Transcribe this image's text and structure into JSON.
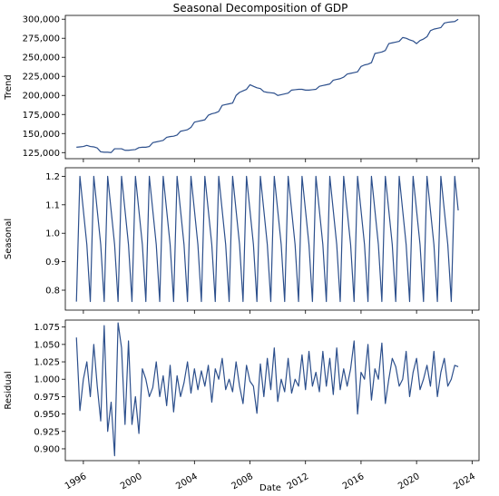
{
  "title": "Seasonal Decomposition of GDP",
  "xlabel": "Date",
  "colors": {
    "line": "#2c4f8c",
    "frame": "#000000",
    "background": "#ffffff"
  },
  "x_ticks": [
    "1996",
    "2000",
    "2004",
    "2008",
    "2012",
    "2016",
    "2020",
    "2024"
  ],
  "chart_data": [
    {
      "type": "line",
      "ylabel": "Trend",
      "xlim": [
        1994.7,
        2024.5
      ],
      "ylim": [
        117000,
        305000
      ],
      "yticks": [
        125000,
        150000,
        175000,
        200000,
        225000,
        250000,
        275000,
        300000
      ],
      "ytick_labels": [
        "125,000",
        "150,000",
        "175,000",
        "200,000",
        "225,000",
        "250,000",
        "275,000",
        "300,000"
      ],
      "x": [
        1995.5,
        1995.75,
        1996.0,
        1996.25,
        1996.5,
        1996.75,
        1997.0,
        1997.25,
        1997.5,
        1997.75,
        1998.0,
        1998.25,
        1998.5,
        1998.75,
        1999.0,
        1999.25,
        1999.5,
        1999.75,
        2000.0,
        2000.25,
        2000.5,
        2000.75,
        2001.0,
        2001.25,
        2001.5,
        2001.75,
        2002.0,
        2002.25,
        2002.5,
        2002.75,
        2003.0,
        2003.25,
        2003.5,
        2003.75,
        2004.0,
        2004.25,
        2004.5,
        2004.75,
        2005.0,
        2005.25,
        2005.5,
        2005.75,
        2006.0,
        2006.25,
        2006.5,
        2006.75,
        2007.0,
        2007.25,
        2007.5,
        2007.75,
        2008.0,
        2008.25,
        2008.5,
        2008.75,
        2009.0,
        2009.25,
        2009.5,
        2009.75,
        2010.0,
        2010.25,
        2010.5,
        2010.75,
        2011.0,
        2011.25,
        2011.5,
        2011.75,
        2012.0,
        2012.25,
        2012.5,
        2012.75,
        2013.0,
        2013.25,
        2013.5,
        2013.75,
        2014.0,
        2014.25,
        2014.5,
        2014.75,
        2015.0,
        2015.25,
        2015.5,
        2015.75,
        2016.0,
        2016.25,
        2016.5,
        2016.75,
        2017.0,
        2017.25,
        2017.5,
        2017.75,
        2018.0,
        2018.25,
        2018.5,
        2018.75,
        2019.0,
        2019.25,
        2019.5,
        2019.75,
        2020.0,
        2020.25,
        2020.5,
        2020.75,
        2021.0,
        2021.25,
        2021.5,
        2021.75,
        2022.0,
        2022.25,
        2022.5,
        2022.75,
        2023.0
      ],
      "y": [
        132000,
        132500,
        133000,
        134500,
        133000,
        132500,
        131000,
        126000,
        125500,
        125500,
        125000,
        130000,
        130000,
        130000,
        128000,
        128000,
        128500,
        129000,
        131500,
        132000,
        132000,
        133000,
        138000,
        139000,
        140000,
        141000,
        145000,
        146000,
        146500,
        148000,
        153000,
        154000,
        155000,
        158000,
        165000,
        166000,
        167000,
        168000,
        174000,
        176000,
        177000,
        179000,
        187000,
        188000,
        189000,
        190000,
        200000,
        204000,
        206000,
        208000,
        214000,
        212000,
        210000,
        209000,
        205000,
        204000,
        203500,
        203000,
        200000,
        201000,
        202000,
        203000,
        207000,
        207500,
        208000,
        208000,
        207000,
        207000,
        207500,
        208000,
        212000,
        213000,
        214000,
        215000,
        220000,
        221000,
        222000,
        224000,
        228000,
        229000,
        230000,
        231000,
        238000,
        240000,
        241000,
        243000,
        255000,
        256000,
        257000,
        259000,
        268000,
        269000,
        270000,
        271000,
        276000,
        275000,
        273000,
        271500,
        268000,
        272000,
        274000,
        277000,
        285000,
        287000,
        288000,
        289000,
        295000,
        296000,
        296500,
        297000,
        300000
      ]
    },
    {
      "type": "line",
      "ylabel": "Seasonal",
      "xlim": [
        1994.7,
        2024.5
      ],
      "ylim": [
        0.73,
        1.23
      ],
      "yticks": [
        0.8,
        0.9,
        1.0,
        1.1,
        1.2
      ],
      "ytick_labels": [
        "0.8",
        "0.9",
        "1.0",
        "1.1",
        "1.2"
      ],
      "x": [
        1995.5,
        1995.75,
        1996.0,
        1996.25,
        1996.5,
        1996.75,
        1997.0,
        1997.25,
        1997.5,
        1997.75,
        1998.0,
        1998.25,
        1998.5,
        1998.75,
        1999.0,
        1999.25,
        1999.5,
        1999.75,
        2000.0,
        2000.25,
        2000.5,
        2000.75,
        2001.0,
        2001.25,
        2001.5,
        2001.75,
        2002.0,
        2002.25,
        2002.5,
        2002.75,
        2003.0,
        2003.25,
        2003.5,
        2003.75,
        2004.0,
        2004.25,
        2004.5,
        2004.75,
        2005.0,
        2005.25,
        2005.5,
        2005.75,
        2006.0,
        2006.25,
        2006.5,
        2006.75,
        2007.0,
        2007.25,
        2007.5,
        2007.75,
        2008.0,
        2008.25,
        2008.5,
        2008.75,
        2009.0,
        2009.25,
        2009.5,
        2009.75,
        2010.0,
        2010.25,
        2010.5,
        2010.75,
        2011.0,
        2011.25,
        2011.5,
        2011.75,
        2012.0,
        2012.25,
        2012.5,
        2012.75,
        2013.0,
        2013.25,
        2013.5,
        2013.75,
        2014.0,
        2014.25,
        2014.5,
        2014.75,
        2015.0,
        2015.25,
        2015.5,
        2015.75,
        2016.0,
        2016.25,
        2016.5,
        2016.75,
        2017.0,
        2017.25,
        2017.5,
        2017.75,
        2018.0,
        2018.25,
        2018.5,
        2018.75,
        2019.0,
        2019.25,
        2019.5,
        2019.75,
        2020.0,
        2020.25,
        2020.5,
        2020.75,
        2021.0,
        2021.25,
        2021.5,
        2021.75,
        2022.0,
        2022.25,
        2022.5,
        2022.75,
        2023.0
      ],
      "y": [
        0.76,
        1.2,
        1.08,
        0.96,
        0.76,
        1.2,
        1.08,
        0.96,
        0.76,
        1.2,
        1.08,
        0.96,
        0.76,
        1.2,
        1.08,
        0.96,
        0.76,
        1.2,
        1.08,
        0.96,
        0.76,
        1.2,
        1.08,
        0.96,
        0.76,
        1.2,
        1.08,
        0.96,
        0.76,
        1.2,
        1.08,
        0.96,
        0.76,
        1.2,
        1.08,
        0.96,
        0.76,
        1.2,
        1.08,
        0.96,
        0.76,
        1.2,
        1.08,
        0.96,
        0.76,
        1.2,
        1.08,
        0.96,
        0.76,
        1.2,
        1.08,
        0.96,
        0.76,
        1.2,
        1.08,
        0.96,
        0.76,
        1.2,
        1.08,
        0.96,
        0.76,
        1.2,
        1.08,
        0.96,
        0.76,
        1.2,
        1.08,
        0.96,
        0.76,
        1.2,
        1.08,
        0.96,
        0.76,
        1.2,
        1.08,
        0.96,
        0.76,
        1.2,
        1.08,
        0.96,
        0.76,
        1.2,
        1.08,
        0.96,
        0.76,
        1.2,
        1.08,
        0.96,
        0.76,
        1.2,
        1.08,
        0.96,
        0.76,
        1.2,
        1.08,
        0.96,
        0.76,
        1.2,
        1.08,
        0.96,
        0.76,
        1.2,
        1.08,
        0.96,
        0.76,
        1.2,
        1.08,
        0.96,
        0.76,
        1.2,
        1.08
      ]
    },
    {
      "type": "line",
      "ylabel": "Residual",
      "xlim": [
        1994.7,
        2024.5
      ],
      "ylim": [
        0.883,
        1.085
      ],
      "yticks": [
        0.9,
        0.925,
        0.95,
        0.975,
        1.0,
        1.025,
        1.05,
        1.075
      ],
      "ytick_labels": [
        "0.900",
        "0.925",
        "0.950",
        "0.975",
        "1.000",
        "1.025",
        "1.050",
        "1.075"
      ],
      "x": [
        1995.5,
        1995.75,
        1996.0,
        1996.25,
        1996.5,
        1996.75,
        1997.0,
        1997.25,
        1997.5,
        1997.75,
        1998.0,
        1998.25,
        1998.5,
        1998.75,
        1999.0,
        1999.25,
        1999.5,
        1999.75,
        2000.0,
        2000.25,
        2000.5,
        2000.75,
        2001.0,
        2001.25,
        2001.5,
        2001.75,
        2002.0,
        2002.25,
        2002.5,
        2002.75,
        2003.0,
        2003.25,
        2003.5,
        2003.75,
        2004.0,
        2004.25,
        2004.5,
        2004.75,
        2005.0,
        2005.25,
        2005.5,
        2005.75,
        2006.0,
        2006.25,
        2006.5,
        2006.75,
        2007.0,
        2007.25,
        2007.5,
        2007.75,
        2008.0,
        2008.25,
        2008.5,
        2008.75,
        2009.0,
        2009.25,
        2009.5,
        2009.75,
        2010.0,
        2010.25,
        2010.5,
        2010.75,
        2011.0,
        2011.25,
        2011.5,
        2011.75,
        2012.0,
        2012.25,
        2012.5,
        2012.75,
        2013.0,
        2013.25,
        2013.5,
        2013.75,
        2014.0,
        2014.25,
        2014.5,
        2014.75,
        2015.0,
        2015.25,
        2015.5,
        2015.75,
        2016.0,
        2016.25,
        2016.5,
        2016.75,
        2017.0,
        2017.25,
        2017.5,
        2017.75,
        2018.0,
        2018.25,
        2018.5,
        2018.75,
        2019.0,
        2019.25,
        2019.5,
        2019.75,
        2020.0,
        2020.25,
        2020.5,
        2020.75,
        2021.0,
        2021.25,
        2021.5,
        2021.75,
        2022.0,
        2022.25,
        2022.5,
        2022.75,
        2023.0
      ],
      "y": [
        1.06,
        0.955,
        1.0,
        1.025,
        0.975,
        1.05,
        0.99,
        0.94,
        1.077,
        0.925,
        0.967,
        0.89,
        1.081,
        1.045,
        0.935,
        1.055,
        0.935,
        0.975,
        0.922,
        1.015,
        1.0,
        0.975,
        0.988,
        1.025,
        0.975,
        1.005,
        0.962,
        1.02,
        0.953,
        1.005,
        0.975,
        0.995,
        1.025,
        0.98,
        1.015,
        0.985,
        1.012,
        0.99,
        1.02,
        0.967,
        1.015,
        1.0,
        1.03,
        0.985,
        1.0,
        0.982,
        1.025,
        0.99,
        0.965,
        1.02,
        0.997,
        0.99,
        0.951,
        1.022,
        0.975,
        1.03,
        0.985,
        1.045,
        0.968,
        1.0,
        0.982,
        1.03,
        0.98,
        1.0,
        0.99,
        1.035,
        0.985,
        1.04,
        0.99,
        1.01,
        0.982,
        1.04,
        0.99,
        1.03,
        0.978,
        1.045,
        0.985,
        1.015,
        0.99,
        1.015,
        1.055,
        0.95,
        1.01,
        1.0,
        1.05,
        0.97,
        1.015,
        1.0,
        1.052,
        0.965,
        1.0,
        1.03,
        1.018,
        0.99,
        1.0,
        1.04,
        0.975,
        1.01,
        1.03,
        0.985,
        1.0,
        1.02,
        0.99,
        1.04,
        0.975,
        1.01,
        1.03,
        0.99,
        1.0,
        1.02,
        1.018
      ]
    }
  ]
}
